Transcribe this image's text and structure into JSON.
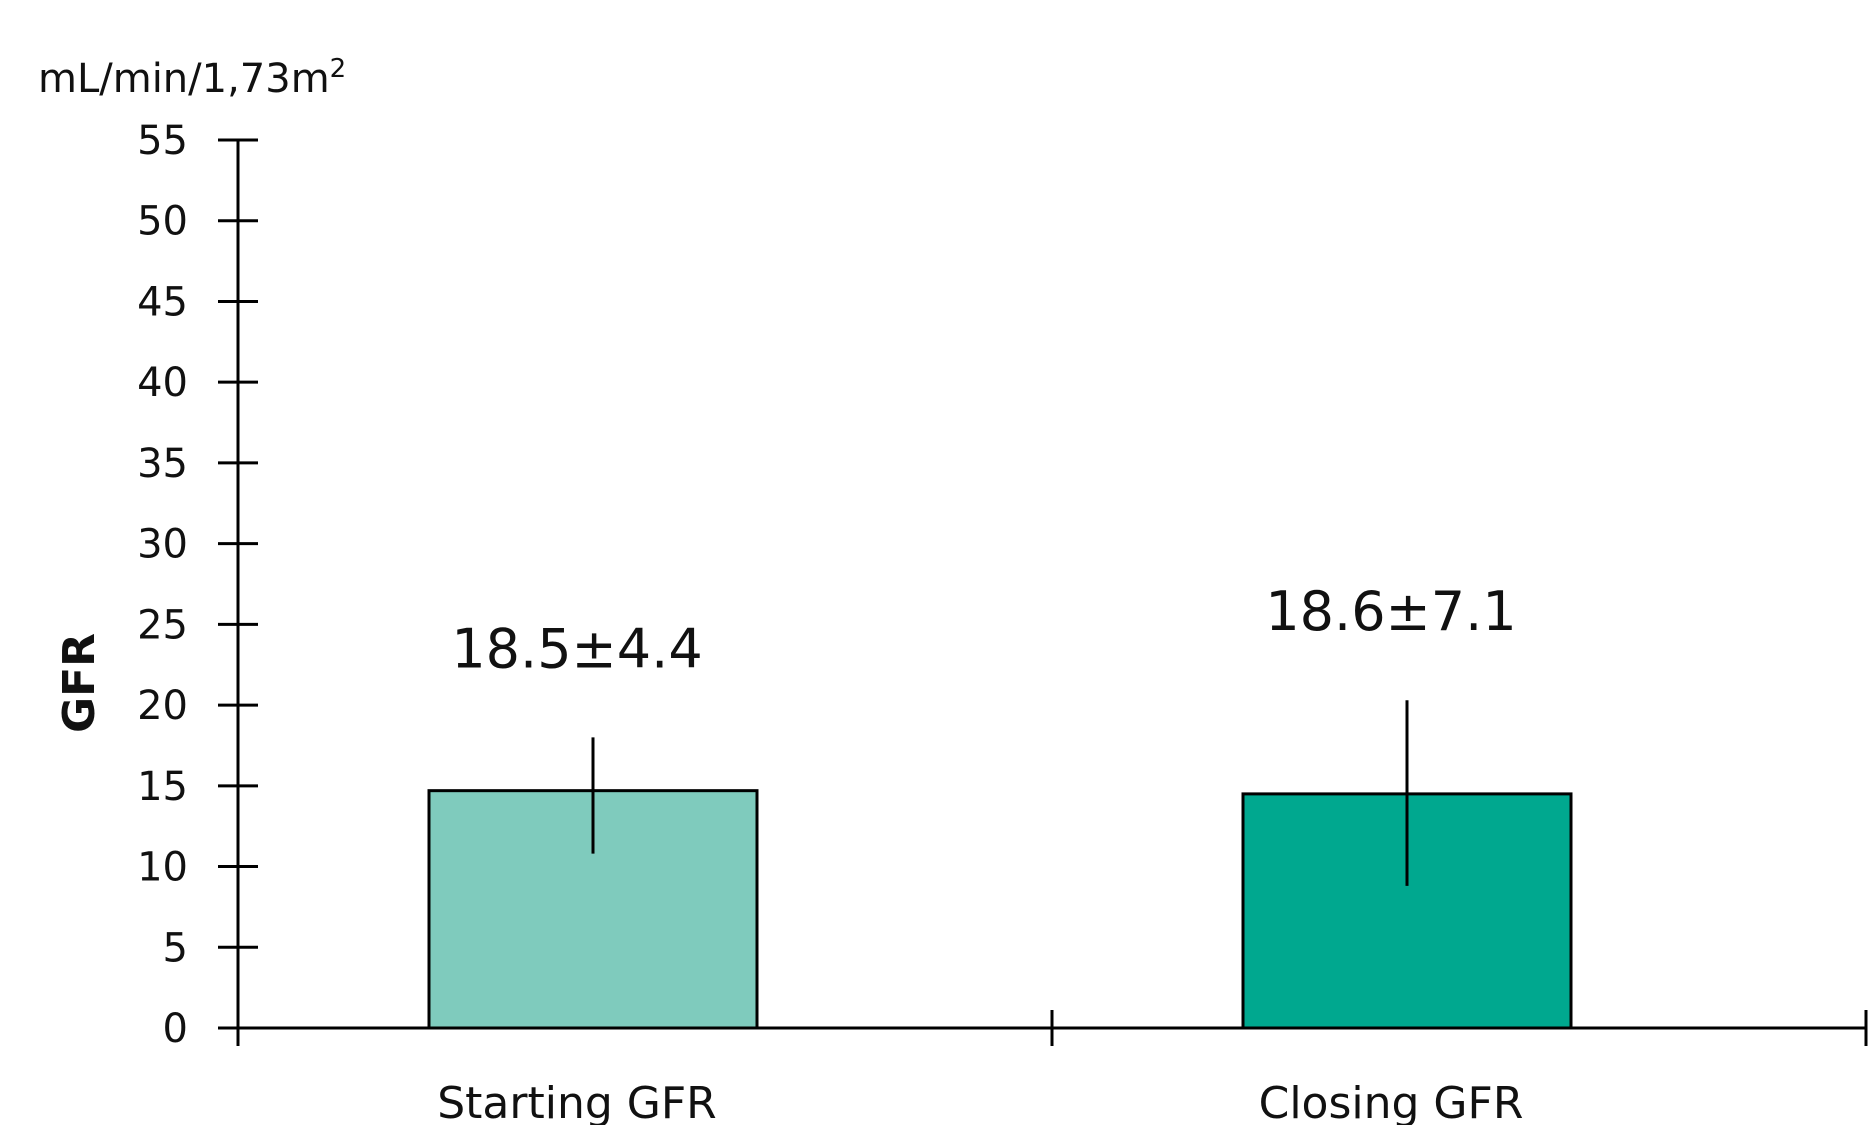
{
  "chart_data": {
    "type": "bar",
    "title": "",
    "unit_label": "mL/min/1,73m",
    "unit_superscript": "2",
    "ylabel": "GFR",
    "xlabel": "",
    "ylim": [
      0,
      55
    ],
    "yticks": [
      0,
      5,
      10,
      15,
      20,
      25,
      30,
      35,
      40,
      45,
      50,
      55
    ],
    "grid": false,
    "categories": [
      "Starting GFR",
      "Closing GFR"
    ],
    "values": [
      14.7,
      14.5
    ],
    "error_low": [
      10.8,
      8.8
    ],
    "error_high": [
      18.0,
      20.3
    ],
    "data_labels": [
      "18.5±4.4",
      "18.6±7.1"
    ],
    "colors": [
      "#7fcbbd",
      "#00a88f"
    ]
  }
}
